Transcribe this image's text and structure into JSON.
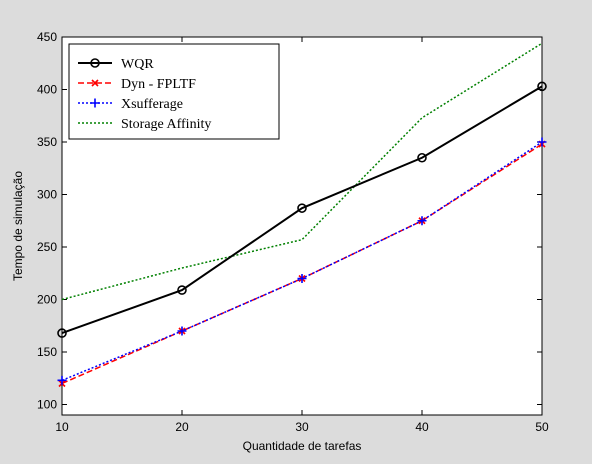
{
  "chart_data": {
    "type": "line",
    "title": "",
    "xlabel": "Quantidade de tarefas",
    "ylabel": "Tempo de simulação",
    "xlim": [
      10,
      50
    ],
    "ylim": [
      90,
      450
    ],
    "xticks": [
      10,
      20,
      30,
      40,
      50
    ],
    "yticks": [
      100,
      150,
      200,
      250,
      300,
      350,
      400,
      450
    ],
    "grid": false,
    "legend_position": "top-left",
    "x": [
      10,
      20,
      30,
      40,
      50
    ],
    "series": [
      {
        "name": "WQR",
        "values": [
          168,
          209,
          287,
          335,
          403
        ],
        "color": "#000000",
        "dash": "solid",
        "marker": "circle"
      },
      {
        "name": "Dyn - FPLTF",
        "values": [
          120,
          170,
          220,
          275,
          348
        ],
        "color": "#ff0000",
        "dash": "dashed",
        "marker": "x"
      },
      {
        "name": "Xsufferage",
        "values": [
          123,
          170,
          220,
          275,
          350
        ],
        "color": "#0000ff",
        "dash": "dotted",
        "marker": "plus"
      },
      {
        "name": "Storage Affinity",
        "values": [
          200,
          230,
          257,
          373,
          444
        ],
        "color": "#008000",
        "dash": "dotted",
        "marker": "none"
      }
    ]
  }
}
